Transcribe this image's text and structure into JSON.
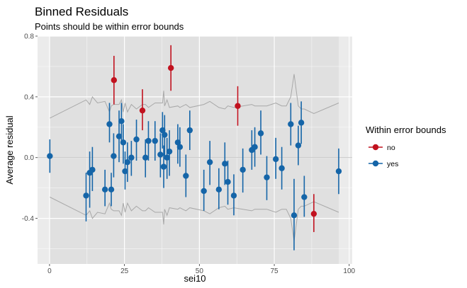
{
  "chart_data": {
    "type": "scatter",
    "title": "Binned Residuals",
    "subtitle": "Points should be within error bounds",
    "xlabel": "sei10",
    "ylabel": "Average residual",
    "xlim": [
      -4,
      101
    ],
    "ylim": [
      -0.7,
      0.8
    ],
    "x_ticks": [
      0,
      25,
      50,
      75,
      100
    ],
    "y_ticks": [
      -0.4,
      0.0,
      0.4,
      0.8
    ],
    "x_tick_labels": [
      "0",
      "25",
      "50",
      "75",
      "100"
    ],
    "y_tick_labels": [
      "-0.4",
      "0.0",
      "0.4",
      "0.8"
    ],
    "grid": true,
    "reference_line_y": 0,
    "legend": {
      "title": "Within error bounds",
      "position": "right",
      "entries": [
        {
          "label": "no",
          "color": "#c1121f"
        },
        {
          "label": "yes",
          "color": "#1565a8"
        }
      ]
    },
    "colors": {
      "no": "#c1121f",
      "yes": "#1565a8",
      "bounds": "#a8a8a8",
      "panel": "#ebebeb",
      "shade": "#e0e0e0"
    },
    "shaded_x_range": [
      0,
      96.5
    ],
    "points": [
      {
        "x": 0.1,
        "y": 0.01,
        "lo": -0.1,
        "hi": 0.12,
        "group": "yes"
      },
      {
        "x": 12.2,
        "y": -0.25,
        "lo": -0.42,
        "hi": -0.1,
        "group": "yes"
      },
      {
        "x": 13.4,
        "y": -0.1,
        "lo": -0.33,
        "hi": 0.04,
        "group": "yes"
      },
      {
        "x": 14.3,
        "y": -0.08,
        "lo": -0.22,
        "hi": 0.07,
        "group": "yes"
      },
      {
        "x": 18.5,
        "y": -0.21,
        "lo": -0.32,
        "hi": -0.08,
        "group": "yes"
      },
      {
        "x": 20.0,
        "y": 0.22,
        "lo": 0.1,
        "hi": 0.36,
        "group": "yes"
      },
      {
        "x": 20.6,
        "y": -0.21,
        "lo": -0.32,
        "hi": -0.1,
        "group": "yes"
      },
      {
        "x": 21.5,
        "y": 0.51,
        "lo": 0.35,
        "hi": 0.67,
        "group": "no"
      },
      {
        "x": 21.4,
        "y": 0.01,
        "lo": -0.13,
        "hi": 0.16,
        "group": "yes"
      },
      {
        "x": 23.2,
        "y": 0.14,
        "lo": -0.03,
        "hi": 0.31,
        "group": "yes"
      },
      {
        "x": 24.0,
        "y": 0.24,
        "lo": 0.1,
        "hi": 0.36,
        "group": "yes"
      },
      {
        "x": 24.6,
        "y": 0.1,
        "lo": -0.04,
        "hi": 0.22,
        "group": "yes"
      },
      {
        "x": 25.2,
        "y": -0.09,
        "lo": -0.21,
        "hi": 0.04,
        "group": "yes"
      },
      {
        "x": 26.0,
        "y": -0.03,
        "lo": -0.16,
        "hi": 0.1,
        "group": "yes"
      },
      {
        "x": 27.3,
        "y": 0.0,
        "lo": -0.12,
        "hi": 0.11,
        "group": "yes"
      },
      {
        "x": 29.0,
        "y": 0.12,
        "lo": -0.02,
        "hi": 0.25,
        "group": "yes"
      },
      {
        "x": 31.0,
        "y": 0.31,
        "lo": 0.18,
        "hi": 0.45,
        "group": "no"
      },
      {
        "x": 32.0,
        "y": 0.0,
        "lo": -0.13,
        "hi": 0.12,
        "group": "yes"
      },
      {
        "x": 33.0,
        "y": 0.11,
        "lo": -0.02,
        "hi": 0.24,
        "group": "yes"
      },
      {
        "x": 35.2,
        "y": 0.11,
        "lo": -0.02,
        "hi": 0.24,
        "group": "yes"
      },
      {
        "x": 37.0,
        "y": 0.02,
        "lo": -0.13,
        "hi": 0.16,
        "group": "yes"
      },
      {
        "x": 37.7,
        "y": 0.18,
        "lo": 0.06,
        "hi": 0.3,
        "group": "yes"
      },
      {
        "x": 38.1,
        "y": -0.06,
        "lo": -0.2,
        "hi": 0.08,
        "group": "yes"
      },
      {
        "x": 38.4,
        "y": 0.15,
        "lo": 0.01,
        "hi": 0.28,
        "group": "yes"
      },
      {
        "x": 39.2,
        "y": 0.0,
        "lo": -0.14,
        "hi": 0.13,
        "group": "yes"
      },
      {
        "x": 40.5,
        "y": 0.59,
        "lo": 0.44,
        "hi": 0.74,
        "group": "no"
      },
      {
        "x": 40.0,
        "y": 0.04,
        "lo": -0.12,
        "hi": 0.18,
        "group": "yes"
      },
      {
        "x": 42.8,
        "y": 0.1,
        "lo": -0.04,
        "hi": 0.22,
        "group": "yes"
      },
      {
        "x": 43.5,
        "y": 0.07,
        "lo": -0.06,
        "hi": 0.2,
        "group": "yes"
      },
      {
        "x": 45.5,
        "y": -0.12,
        "lo": -0.26,
        "hi": 0.02,
        "group": "yes"
      },
      {
        "x": 46.8,
        "y": 0.18,
        "lo": 0.05,
        "hi": 0.31,
        "group": "yes"
      },
      {
        "x": 51.5,
        "y": -0.22,
        "lo": -0.35,
        "hi": -0.08,
        "group": "yes"
      },
      {
        "x": 53.5,
        "y": -0.03,
        "lo": -0.18,
        "hi": 0.11,
        "group": "yes"
      },
      {
        "x": 56.5,
        "y": -0.21,
        "lo": -0.34,
        "hi": -0.07,
        "group": "yes"
      },
      {
        "x": 58.5,
        "y": -0.04,
        "lo": -0.18,
        "hi": 0.1,
        "group": "yes"
      },
      {
        "x": 59.5,
        "y": -0.16,
        "lo": -0.31,
        "hi": -0.02,
        "group": "yes"
      },
      {
        "x": 61.5,
        "y": -0.25,
        "lo": -0.38,
        "hi": -0.11,
        "group": "yes"
      },
      {
        "x": 62.8,
        "y": 0.34,
        "lo": 0.21,
        "hi": 0.47,
        "group": "no"
      },
      {
        "x": 64.5,
        "y": -0.08,
        "lo": -0.23,
        "hi": 0.06,
        "group": "yes"
      },
      {
        "x": 67.5,
        "y": 0.05,
        "lo": -0.08,
        "hi": 0.18,
        "group": "yes"
      },
      {
        "x": 68.5,
        "y": 0.07,
        "lo": -0.06,
        "hi": 0.2,
        "group": "yes"
      },
      {
        "x": 70.5,
        "y": 0.16,
        "lo": 0.02,
        "hi": 0.31,
        "group": "yes"
      },
      {
        "x": 72.5,
        "y": -0.13,
        "lo": -0.28,
        "hi": 0.01,
        "group": "yes"
      },
      {
        "x": 75.5,
        "y": -0.01,
        "lo": -0.14,
        "hi": 0.13,
        "group": "yes"
      },
      {
        "x": 77.5,
        "y": -0.07,
        "lo": -0.21,
        "hi": 0.07,
        "group": "yes"
      },
      {
        "x": 80.5,
        "y": 0.22,
        "lo": 0.08,
        "hi": 0.36,
        "group": "yes"
      },
      {
        "x": 81.6,
        "y": -0.38,
        "lo": -0.61,
        "hi": -0.14,
        "group": "yes"
      },
      {
        "x": 83.0,
        "y": 0.08,
        "lo": -0.05,
        "hi": 0.21,
        "group": "yes"
      },
      {
        "x": 84.0,
        "y": 0.23,
        "lo": 0.09,
        "hi": 0.37,
        "group": "yes"
      },
      {
        "x": 85.0,
        "y": -0.26,
        "lo": -0.39,
        "hi": -0.12,
        "group": "yes"
      },
      {
        "x": 88.2,
        "y": -0.37,
        "lo": -0.49,
        "hi": -0.24,
        "group": "no"
      },
      {
        "x": 96.5,
        "y": -0.09,
        "lo": -0.24,
        "hi": 0.06,
        "group": "yes"
      }
    ],
    "bounds_upper": [
      [
        0.1,
        0.26
      ],
      [
        12.2,
        0.38
      ],
      [
        13.4,
        0.35
      ],
      [
        14.3,
        0.4
      ],
      [
        16.0,
        0.36
      ],
      [
        18.5,
        0.37
      ],
      [
        20.0,
        0.3
      ],
      [
        20.6,
        0.34
      ],
      [
        21.4,
        0.35
      ],
      [
        23.2,
        0.35
      ],
      [
        24.0,
        0.38
      ],
      [
        24.6,
        0.3
      ],
      [
        25.2,
        0.36
      ],
      [
        26.0,
        0.3
      ],
      [
        27.3,
        0.35
      ],
      [
        29.0,
        0.32
      ],
      [
        31.0,
        0.35
      ],
      [
        32.0,
        0.35
      ],
      [
        33.0,
        0.33
      ],
      [
        35.2,
        0.36
      ],
      [
        37.0,
        0.36
      ],
      [
        37.7,
        0.36
      ],
      [
        38.1,
        0.44
      ],
      [
        38.4,
        0.34
      ],
      [
        39.2,
        0.38
      ],
      [
        40.0,
        0.33
      ],
      [
        42.8,
        0.34
      ],
      [
        43.5,
        0.33
      ],
      [
        45.5,
        0.35
      ],
      [
        46.8,
        0.33
      ],
      [
        51.5,
        0.35
      ],
      [
        53.5,
        0.37
      ],
      [
        56.5,
        0.33
      ],
      [
        58.5,
        0.32
      ],
      [
        59.5,
        0.34
      ],
      [
        61.5,
        0.33
      ],
      [
        64.5,
        0.34
      ],
      [
        67.5,
        0.35
      ],
      [
        68.5,
        0.34
      ],
      [
        70.5,
        0.34
      ],
      [
        72.5,
        0.34
      ],
      [
        75.5,
        0.36
      ],
      [
        77.5,
        0.34
      ],
      [
        79.0,
        0.34
      ],
      [
        80.5,
        0.4
      ],
      [
        81.6,
        0.55
      ],
      [
        83.0,
        0.34
      ],
      [
        84.0,
        0.32
      ],
      [
        85.0,
        0.32
      ],
      [
        88.2,
        0.29
      ],
      [
        96.5,
        0.36
      ]
    ],
    "bounds_lower": [
      [
        0.1,
        -0.26
      ],
      [
        12.2,
        -0.38
      ],
      [
        13.4,
        -0.35
      ],
      [
        14.3,
        -0.4
      ],
      [
        16.0,
        -0.36
      ],
      [
        18.5,
        -0.37
      ],
      [
        20.0,
        -0.3
      ],
      [
        20.6,
        -0.34
      ],
      [
        21.4,
        -0.35
      ],
      [
        23.2,
        -0.35
      ],
      [
        24.0,
        -0.38
      ],
      [
        24.6,
        -0.3
      ],
      [
        25.2,
        -0.36
      ],
      [
        26.0,
        -0.3
      ],
      [
        27.3,
        -0.35
      ],
      [
        29.0,
        -0.32
      ],
      [
        31.0,
        -0.35
      ],
      [
        32.0,
        -0.35
      ],
      [
        33.0,
        -0.33
      ],
      [
        35.2,
        -0.36
      ],
      [
        37.0,
        -0.36
      ],
      [
        37.7,
        -0.36
      ],
      [
        38.1,
        -0.44
      ],
      [
        38.4,
        -0.34
      ],
      [
        39.2,
        -0.38
      ],
      [
        40.0,
        -0.33
      ],
      [
        42.8,
        -0.34
      ],
      [
        43.5,
        -0.33
      ],
      [
        45.5,
        -0.35
      ],
      [
        46.8,
        -0.33
      ],
      [
        51.5,
        -0.35
      ],
      [
        53.5,
        -0.37
      ],
      [
        56.5,
        -0.33
      ],
      [
        58.5,
        -0.32
      ],
      [
        59.5,
        -0.34
      ],
      [
        61.5,
        -0.33
      ],
      [
        64.5,
        -0.34
      ],
      [
        67.5,
        -0.35
      ],
      [
        68.5,
        -0.34
      ],
      [
        70.5,
        -0.34
      ],
      [
        72.5,
        -0.34
      ],
      [
        75.5,
        -0.36
      ],
      [
        77.5,
        -0.34
      ],
      [
        79.0,
        -0.34
      ],
      [
        80.5,
        -0.4
      ],
      [
        81.6,
        -0.55
      ],
      [
        83.0,
        -0.34
      ],
      [
        84.0,
        -0.32
      ],
      [
        85.0,
        -0.32
      ],
      [
        88.2,
        -0.29
      ],
      [
        96.5,
        -0.36
      ]
    ]
  }
}
